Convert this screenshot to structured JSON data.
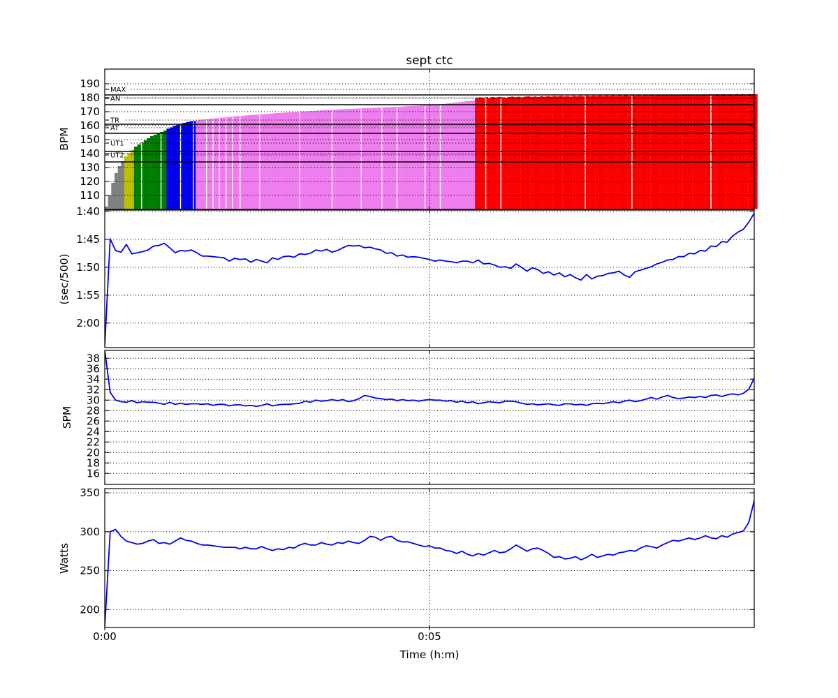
{
  "title": "sept ctc",
  "xlabel": "Time (h:m)",
  "x_range_s": [
    0,
    600
  ],
  "x_ticks": [
    {
      "t_s": 0,
      "label": "0:00"
    },
    {
      "t_s": 300,
      "label": "0:05"
    }
  ],
  "colors": {
    "line": "#0000ee",
    "grid": "#000000",
    "zone_gray": "#808080",
    "zone_yellow": "#bdbd00",
    "zone_green": "#007d00",
    "zone_blue": "#0000ee",
    "zone_violet": "#ee7dee",
    "zone_red": "#fb0000"
  },
  "chart_data": [
    {
      "type": "bar",
      "name": "heart-rate",
      "ylabel": "BPM",
      "ylim": [
        100,
        200.5
      ],
      "yticks": [
        {
          "v": 110,
          "label": "110"
        },
        {
          "v": 120,
          "label": "120"
        },
        {
          "v": 130,
          "label": "130"
        },
        {
          "v": 140,
          "label": "140"
        },
        {
          "v": 150,
          "label": "150"
        },
        {
          "v": 160,
          "label": "160"
        },
        {
          "v": 170,
          "label": "170"
        },
        {
          "v": 180,
          "label": "180"
        },
        {
          "v": 190,
          "label": "190"
        }
      ],
      "zones": [
        {
          "name": "MAX",
          "label_bpm": 186,
          "line_bpm": 182
        },
        {
          "name": "AN",
          "label_bpm": 179.5,
          "line_bpm": 175
        },
        {
          "name": "TR",
          "label_bpm": 164,
          "line_bpm": 161
        },
        {
          "name": "AT",
          "label_bpm": 158.5,
          "line_bpm": 154.5
        },
        {
          "name": "UT1",
          "label_bpm": 147.5,
          "line_bpm": 141.5
        },
        {
          "name": "UT2",
          "label_bpm": 139,
          "line_bpm": 134
        }
      ],
      "color_thresholds": [
        {
          "max": 137.5,
          "color": "#808080"
        },
        {
          "max": 144,
          "color": "#bdbd00"
        },
        {
          "max": 157.5,
          "color": "#007d00"
        },
        {
          "max": 163.5,
          "color": "#0000ee"
        },
        {
          "max": 178.8,
          "color": "#ee7dee"
        },
        {
          "max": 999,
          "color": "#fb0000"
        }
      ],
      "seams_s": [
        34,
        52,
        70,
        82,
        94,
        100,
        106,
        112,
        118,
        125,
        143,
        180,
        210,
        237,
        256,
        270,
        296,
        310,
        352,
        366,
        444,
        487,
        560
      ],
      "interval_s": 3,
      "values": [
        102,
        110,
        119,
        126,
        131,
        134.5,
        138,
        140.5,
        142.5,
        145,
        146.5,
        148,
        149.5,
        151,
        152.5,
        153.5,
        154.5,
        155.5,
        156.5,
        157.8,
        158.8,
        159.8,
        160.6,
        161.4,
        162,
        162.6,
        163.1,
        163.4,
        163.8,
        164.1,
        164.4,
        164.6,
        164.9,
        165.1,
        165.3,
        165.6,
        165.8,
        166.0,
        166.3,
        166.5,
        166.7,
        166.9,
        167.1,
        167.3,
        167.5,
        167.7,
        167.8,
        168.0,
        168.2,
        168.4,
        168.5,
        168.7,
        168.9,
        169.0,
        169.2,
        169.3,
        169.5,
        169.6,
        169.8,
        169.9,
        170.1,
        170.2,
        170.4,
        170.5,
        170.6,
        170.8,
        170.9,
        171.0,
        171.2,
        171.3,
        171.4,
        171.5,
        171.7,
        171.8,
        171.9,
        172.0,
        172.1,
        172.2,
        172.3,
        172.4,
        172.5,
        172.6,
        172.7,
        172.8,
        172.9,
        173.0,
        173.1,
        173.2,
        173.3,
        173.4,
        173.5,
        173.6,
        173.8,
        173.9,
        174.0,
        174.1,
        174.2,
        174.4,
        174.5,
        174.6,
        174.8,
        175.0,
        175.2,
        175.4,
        175.6,
        175.9,
        176.1,
        176.4,
        176.6,
        176.9,
        177.2,
        177.5,
        177.8,
        178.0,
        179.8,
        180.3,
        180.0,
        180.4,
        179.8,
        180.5,
        180.2,
        180.6,
        180.3,
        180.0,
        180.5,
        180.8,
        180.4,
        180.7,
        180.3,
        180.8,
        181.0,
        180.6,
        180.9,
        180.5,
        181.0,
        180.7,
        181.1,
        180.8,
        181.2,
        180.9,
        181.3,
        180.9,
        181.2,
        180.8,
        181.3,
        181.0,
        181.4,
        181.0,
        181.5,
        181.1,
        181.5,
        181.2,
        181.6,
        181.2,
        181.6,
        181.3,
        181.7,
        181.3,
        181.7,
        181.4,
        181.8,
        181.4,
        181.8,
        181.5,
        181.9,
        181.5,
        181.9,
        181.6,
        182.0,
        181.6,
        182.0,
        181.7,
        182.1,
        181.7,
        182.1,
        181.8,
        182.2,
        181.8,
        182.2,
        181.9,
        182.3,
        181.9,
        182.3,
        182.0,
        182.4,
        182.0,
        182.4,
        182.1,
        182.5,
        182.1,
        182.5,
        182.2,
        182.5,
        182.2,
        182.6,
        182.3,
        182.6,
        182.3,
        182.6,
        182.4,
        182.6
      ]
    },
    {
      "type": "line",
      "name": "pace",
      "ylabel": "(sec/500)",
      "inverted": true,
      "ylim": [
        99.75,
        124.4
      ],
      "yticks": [
        {
          "v": 100,
          "label": "1:40"
        },
        {
          "v": 105,
          "label": "1:45"
        },
        {
          "v": 110,
          "label": "1:50"
        },
        {
          "v": 115,
          "label": "1:55"
        },
        {
          "v": 120,
          "label": "2:00"
        }
      ],
      "interval_s": 5,
      "values": [
        124,
        104.9,
        107.0,
        107.3,
        105.9,
        107.6,
        107.4,
        107.2,
        106.9,
        106.2,
        106.1,
        105.7,
        106.5,
        107.4,
        107.0,
        107.1,
        106.9,
        107.4,
        108.0,
        108.0,
        108.1,
        108.2,
        108.3,
        108.9,
        108.4,
        108.6,
        108.5,
        109.1,
        108.6,
        108.9,
        109.2,
        108.3,
        108.6,
        108.1,
        108.0,
        108.2,
        107.6,
        107.7,
        107.5,
        106.9,
        107.1,
        106.8,
        107.3,
        107.0,
        106.5,
        106.1,
        106.2,
        106.1,
        106.5,
        106.4,
        106.7,
        106.9,
        107.5,
        107.4,
        108.0,
        107.8,
        108.2,
        108.1,
        108.2,
        108.4,
        108.6,
        108.9,
        108.7,
        108.9,
        109.0,
        109.2,
        108.9,
        108.9,
        109.2,
        108.7,
        109.4,
        109.3,
        109.6,
        110.0,
        109.9,
        110.2,
        109.4,
        110.0,
        110.7,
        110.1,
        110.4,
        111.1,
        110.8,
        111.4,
        111.0,
        111.7,
        111.3,
        111.9,
        112.3,
        111.3,
        112.1,
        111.6,
        111.5,
        111.1,
        111.0,
        110.7,
        111.4,
        111.8,
        110.8,
        110.5,
        110.2,
        109.9,
        109.4,
        109.1,
        108.7,
        108.6,
        108.1,
        108.1,
        107.5,
        107.6,
        107.0,
        107.1,
        106.2,
        106.3,
        105.4,
        105.5,
        104.4,
        103.7,
        103.2,
        101.9,
        100.3
      ]
    },
    {
      "type": "line",
      "name": "stroke-rate",
      "ylabel": "SPM",
      "inverted": false,
      "ylim": [
        13.9,
        39.5
      ],
      "yticks": [
        {
          "v": 16,
          "label": "16"
        },
        {
          "v": 18,
          "label": "18"
        },
        {
          "v": 20,
          "label": "20"
        },
        {
          "v": 22,
          "label": "22"
        },
        {
          "v": 24,
          "label": "24"
        },
        {
          "v": 26,
          "label": "26"
        },
        {
          "v": 28,
          "label": "28"
        },
        {
          "v": 30,
          "label": "30"
        },
        {
          "v": 32,
          "label": "32"
        },
        {
          "v": 34,
          "label": "34"
        },
        {
          "v": 36,
          "label": "36"
        },
        {
          "v": 38,
          "label": "38"
        }
      ],
      "interval_s": 5,
      "values": [
        39.5,
        31.5,
        30.0,
        29.7,
        29.6,
        29.9,
        29.5,
        29.7,
        29.6,
        29.6,
        29.4,
        29.2,
        29.6,
        29.2,
        29.4,
        29.2,
        29.3,
        29.3,
        29.2,
        29.3,
        29.0,
        29.2,
        29.2,
        28.9,
        29.1,
        29.1,
        28.9,
        29.0,
        28.8,
        29.0,
        29.3,
        28.9,
        29.1,
        29.2,
        29.2,
        29.3,
        29.4,
        29.8,
        29.6,
        30.0,
        29.8,
        29.9,
        30.1,
        29.9,
        30.1,
        29.7,
        29.9,
        30.3,
        30.9,
        30.7,
        30.4,
        30.3,
        30.1,
        30.2,
        29.9,
        30.1,
        29.9,
        30.0,
        29.8,
        30.0,
        30.1,
        30.0,
        30.0,
        29.8,
        29.9,
        29.6,
        29.8,
        29.5,
        29.7,
        29.3,
        29.5,
        29.7,
        29.6,
        29.5,
        29.8,
        29.8,
        29.7,
        29.4,
        29.2,
        29.3,
        29.1,
        29.2,
        29.3,
        29.1,
        29.0,
        29.3,
        29.3,
        29.1,
        29.2,
        29.0,
        29.3,
        29.4,
        29.3,
        29.5,
        29.7,
        29.5,
        29.8,
        30.0,
        29.7,
        29.9,
        30.2,
        30.5,
        30.2,
        30.6,
        30.9,
        30.5,
        30.3,
        30.4,
        30.6,
        30.5,
        30.7,
        30.5,
        30.9,
        31.0,
        30.7,
        31.0,
        31.2,
        31.0,
        31.3,
        32.1,
        34.2
      ]
    },
    {
      "type": "line",
      "name": "power",
      "ylabel": "Watts",
      "inverted": false,
      "ylim": [
        177,
        355.4
      ],
      "yticks": [
        {
          "v": 200,
          "label": "200"
        },
        {
          "v": 250,
          "label": "250"
        },
        {
          "v": 300,
          "label": "300"
        },
        {
          "v": 350,
          "label": "350"
        }
      ],
      "interval_s": 5,
      "values": [
        177.5,
        300,
        303,
        294,
        288,
        286,
        284,
        285,
        288,
        290,
        285,
        286,
        284,
        288,
        292,
        289,
        288,
        285,
        283,
        283,
        282,
        281,
        280,
        280,
        280,
        278,
        280,
        278,
        278,
        281,
        278,
        276,
        278,
        277,
        280,
        279,
        283,
        285,
        283,
        283,
        286,
        284,
        283,
        286,
        285,
        288,
        286,
        285,
        289,
        294,
        293,
        289,
        293,
        294,
        289,
        287,
        287,
        285,
        283,
        281,
        282,
        279,
        279,
        276,
        275,
        272,
        275,
        271,
        269,
        272,
        270,
        273,
        276,
        273,
        274,
        278,
        283,
        279,
        275,
        278,
        279,
        276,
        272,
        267,
        268,
        265,
        266,
        268,
        264,
        267,
        271,
        267,
        269,
        271,
        270,
        273,
        274,
        276,
        275,
        279,
        282,
        281,
        279,
        283,
        286,
        289,
        288,
        290,
        292,
        290,
        292,
        295,
        292,
        291,
        295,
        293,
        297,
        299,
        301,
        312,
        340
      ]
    }
  ]
}
